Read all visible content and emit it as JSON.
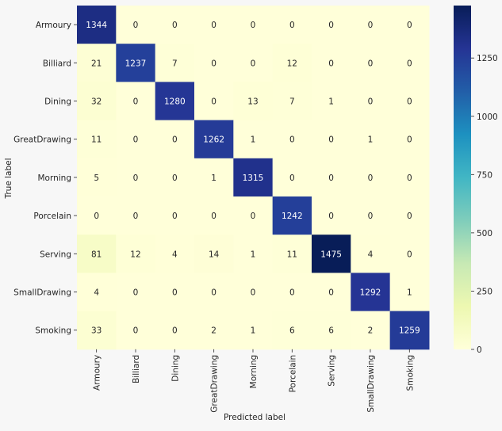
{
  "chart_data": {
    "type": "heatmap",
    "title": "",
    "xlabel": "Predicted label",
    "ylabel": "True label",
    "categories": [
      "Armoury",
      "Billiard",
      "Dining",
      "GreatDrawing",
      "Morning",
      "Porcelain",
      "Serving",
      "SmallDrawing",
      "Smoking"
    ],
    "matrix": [
      [
        1344,
        0,
        0,
        0,
        0,
        0,
        0,
        0,
        0
      ],
      [
        21,
        1237,
        7,
        0,
        0,
        12,
        0,
        0,
        0
      ],
      [
        32,
        0,
        1280,
        0,
        13,
        7,
        1,
        0,
        0
      ],
      [
        11,
        0,
        0,
        1262,
        1,
        0,
        0,
        1,
        0
      ],
      [
        5,
        0,
        0,
        1,
        1315,
        0,
        0,
        0,
        0
      ],
      [
        0,
        0,
        0,
        0,
        0,
        1242,
        0,
        0,
        0
      ],
      [
        81,
        12,
        4,
        14,
        1,
        11,
        1475,
        4,
        0
      ],
      [
        4,
        0,
        0,
        0,
        0,
        0,
        0,
        1292,
        1
      ],
      [
        33,
        0,
        0,
        2,
        1,
        6,
        6,
        2,
        1259
      ]
    ],
    "colormap": "YlGnBu",
    "vmin": 0,
    "vmax": 1475,
    "colorbar_ticks": [
      0,
      250,
      500,
      750,
      1000,
      1250
    ]
  },
  "colors": {
    "background": "#f7f7f7",
    "text_dark": "#262626",
    "text_light": "#ffffff"
  }
}
